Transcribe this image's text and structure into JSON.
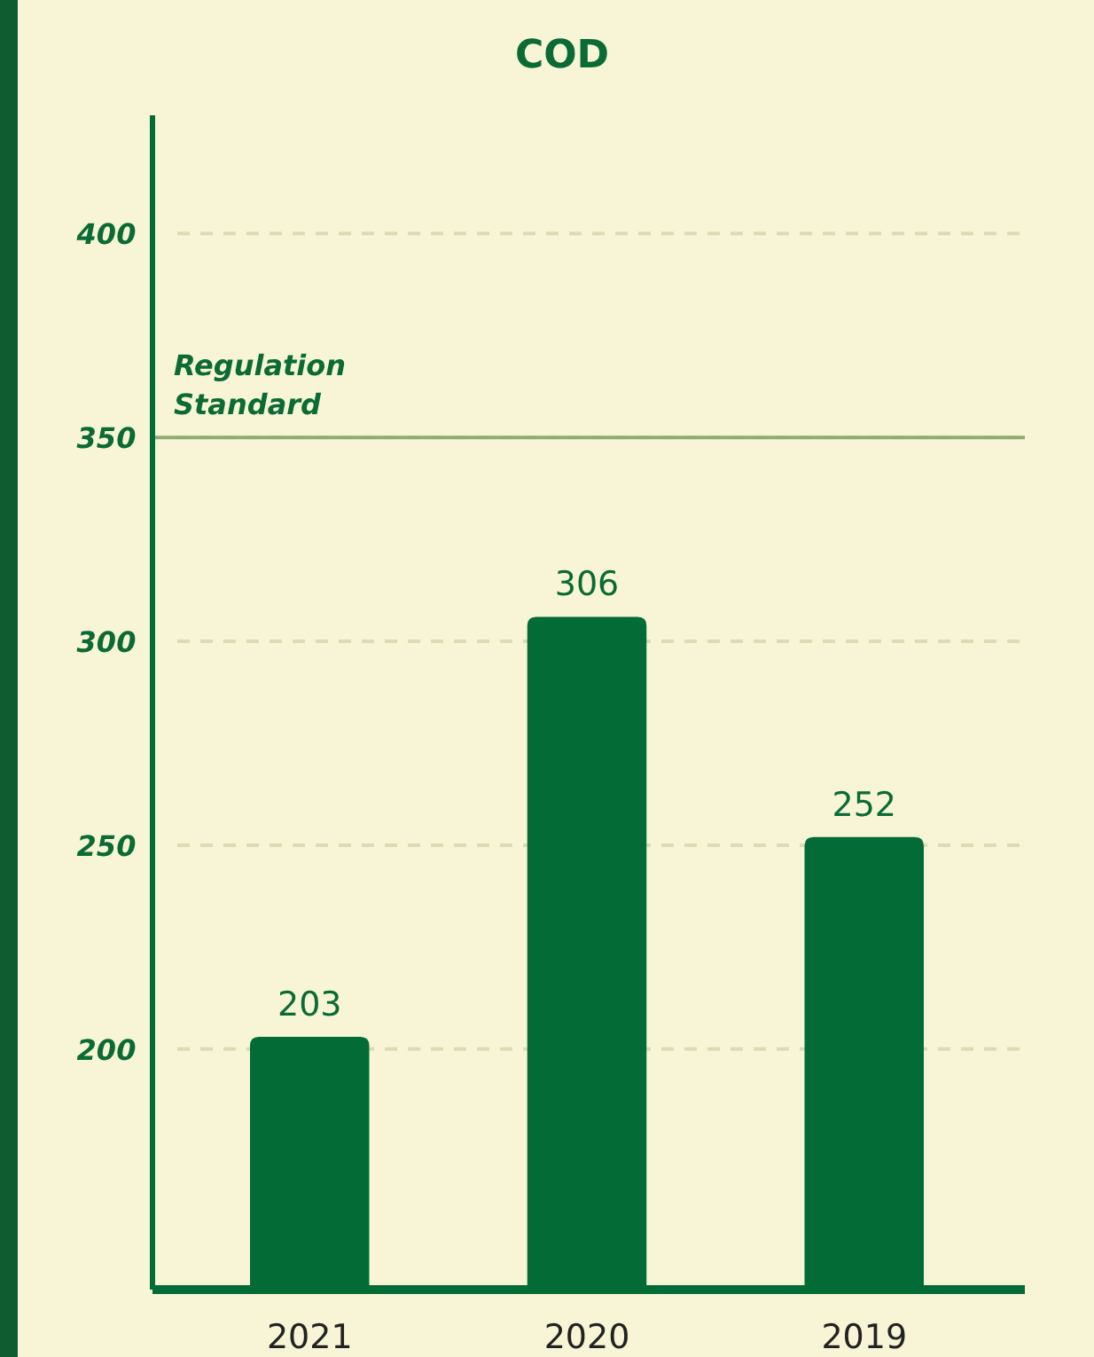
{
  "chart_data": {
    "type": "bar",
    "title": "COD",
    "categories": [
      "2021",
      "2020",
      "2019"
    ],
    "values": [
      203,
      306,
      252
    ],
    "color": "#036c36",
    "data_labels": true,
    "ylim": [
      141,
      429
    ],
    "yticks": [
      200,
      250,
      300,
      350,
      400
    ],
    "grid": "y",
    "ref_lines": [
      {
        "axis": "y",
        "value": 350,
        "label": "Regulation Standard",
        "color": "#8fae6e",
        "line_style": "solid"
      }
    ]
  }
}
